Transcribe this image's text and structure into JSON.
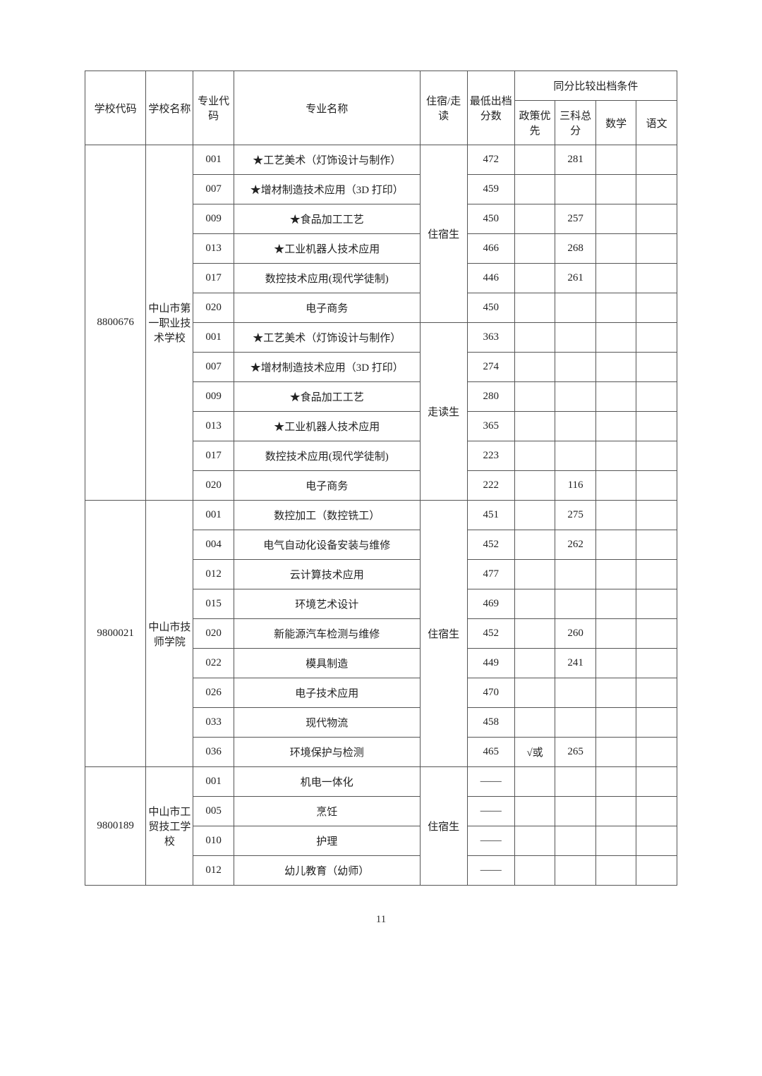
{
  "headers": {
    "schoolCode": "学校代码",
    "schoolName": "学校名称",
    "majorCode": "专业代码",
    "majorName": "专业名称",
    "stay": "住宿/走读",
    "score": "最低出档分数",
    "tiebreak": "同分比较出档条件",
    "policy": "政策优先",
    "sanke": "三科总分",
    "math": "数学",
    "chinese": "语文"
  },
  "pageNumber": "11",
  "schools": [
    {
      "code": "8800676",
      "name": "中山市第一职业技术学校",
      "groups": [
        {
          "stay": "住宿生",
          "rows": [
            {
              "majorCode": "001",
              "majorName": "★工艺美术（灯饰设计与制作）",
              "score": "472",
              "policy": "",
              "sanke": "281",
              "math": "",
              "chinese": ""
            },
            {
              "majorCode": "007",
              "majorName": "★增材制造技术应用（3D 打印）",
              "score": "459",
              "policy": "",
              "sanke": "",
              "math": "",
              "chinese": ""
            },
            {
              "majorCode": "009",
              "majorName": "★食品加工工艺",
              "score": "450",
              "policy": "",
              "sanke": "257",
              "math": "",
              "chinese": ""
            },
            {
              "majorCode": "013",
              "majorName": "★工业机器人技术应用",
              "score": "466",
              "policy": "",
              "sanke": "268",
              "math": "",
              "chinese": ""
            },
            {
              "majorCode": "017",
              "majorName": "数控技术应用(现代学徒制)",
              "score": "446",
              "policy": "",
              "sanke": "261",
              "math": "",
              "chinese": ""
            },
            {
              "majorCode": "020",
              "majorName": "电子商务",
              "score": "450",
              "policy": "",
              "sanke": "",
              "math": "",
              "chinese": ""
            }
          ]
        },
        {
          "stay": "走读生",
          "rows": [
            {
              "majorCode": "001",
              "majorName": "★工艺美术（灯饰设计与制作）",
              "score": "363",
              "policy": "",
              "sanke": "",
              "math": "",
              "chinese": ""
            },
            {
              "majorCode": "007",
              "majorName": "★增材制造技术应用（3D 打印）",
              "score": "274",
              "policy": "",
              "sanke": "",
              "math": "",
              "chinese": ""
            },
            {
              "majorCode": "009",
              "majorName": "★食品加工工艺",
              "score": "280",
              "policy": "",
              "sanke": "",
              "math": "",
              "chinese": ""
            },
            {
              "majorCode": "013",
              "majorName": "★工业机器人技术应用",
              "score": "365",
              "policy": "",
              "sanke": "",
              "math": "",
              "chinese": ""
            },
            {
              "majorCode": "017",
              "majorName": "数控技术应用(现代学徒制)",
              "score": "223",
              "policy": "",
              "sanke": "",
              "math": "",
              "chinese": ""
            },
            {
              "majorCode": "020",
              "majorName": "电子商务",
              "score": "222",
              "policy": "",
              "sanke": "116",
              "math": "",
              "chinese": ""
            }
          ]
        }
      ]
    },
    {
      "code": "9800021",
      "name": "中山市技师学院",
      "groups": [
        {
          "stay": "住宿生",
          "rows": [
            {
              "majorCode": "001",
              "majorName": "数控加工（数控铣工）",
              "score": "451",
              "policy": "",
              "sanke": "275",
              "math": "",
              "chinese": ""
            },
            {
              "majorCode": "004",
              "majorName": "电气自动化设备安装与维修",
              "score": "452",
              "policy": "",
              "sanke": "262",
              "math": "",
              "chinese": ""
            },
            {
              "majorCode": "012",
              "majorName": "云计算技术应用",
              "score": "477",
              "policy": "",
              "sanke": "",
              "math": "",
              "chinese": ""
            },
            {
              "majorCode": "015",
              "majorName": "环境艺术设计",
              "score": "469",
              "policy": "",
              "sanke": "",
              "math": "",
              "chinese": ""
            },
            {
              "majorCode": "020",
              "majorName": "新能源汽车检测与维修",
              "score": "452",
              "policy": "",
              "sanke": "260",
              "math": "",
              "chinese": ""
            },
            {
              "majorCode": "022",
              "majorName": "模具制造",
              "score": "449",
              "policy": "",
              "sanke": "241",
              "math": "",
              "chinese": ""
            },
            {
              "majorCode": "026",
              "majorName": "电子技术应用",
              "score": "470",
              "policy": "",
              "sanke": "",
              "math": "",
              "chinese": ""
            },
            {
              "majorCode": "033",
              "majorName": "现代物流",
              "score": "458",
              "policy": "",
              "sanke": "",
              "math": "",
              "chinese": ""
            },
            {
              "majorCode": "036",
              "majorName": "环境保护与检测",
              "score": "465",
              "policy": "√或",
              "sanke": "265",
              "math": "",
              "chinese": ""
            }
          ]
        }
      ]
    },
    {
      "code": "9800189",
      "name": "中山市工贸技工学校",
      "groups": [
        {
          "stay": "住宿生",
          "rows": [
            {
              "majorCode": "001",
              "majorName": "机电一体化",
              "score": "——",
              "policy": "",
              "sanke": "",
              "math": "",
              "chinese": ""
            },
            {
              "majorCode": "005",
              "majorName": "烹饪",
              "score": "——",
              "policy": "",
              "sanke": "",
              "math": "",
              "chinese": ""
            },
            {
              "majorCode": "010",
              "majorName": "护理",
              "score": "——",
              "policy": "",
              "sanke": "",
              "math": "",
              "chinese": ""
            },
            {
              "majorCode": "012",
              "majorName": "幼儿教育（幼师）",
              "score": "——",
              "policy": "",
              "sanke": "",
              "math": "",
              "chinese": ""
            }
          ]
        }
      ]
    }
  ]
}
